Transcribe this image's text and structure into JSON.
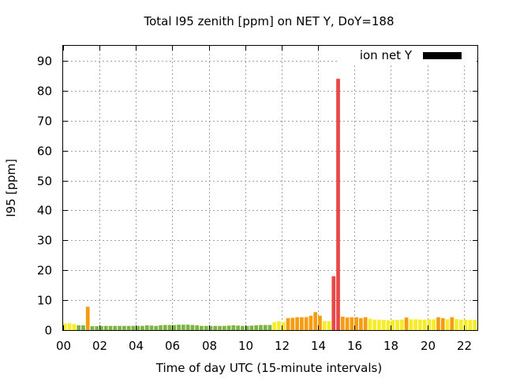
{
  "chart_data": {
    "type": "bar",
    "title": "Total I95 zenith [ppm] on NET Y, DoY=188",
    "xlabel": "Time of day UTC (15-minute intervals)",
    "ylabel": "I95 [ppm]",
    "xlim": [
      0,
      22.75
    ],
    "ylim": [
      0,
      95
    ],
    "x_ticks": [
      "00",
      "02",
      "04",
      "06",
      "08",
      "10",
      "12",
      "14",
      "16",
      "18",
      "20",
      "22"
    ],
    "y_ticks": [
      "0",
      "10",
      "20",
      "30",
      "40",
      "50",
      "60",
      "70",
      "80",
      "90"
    ],
    "grid": true,
    "legend": {
      "position": "top-right",
      "entries": [
        {
          "label": "ion net Y",
          "color": "#000000"
        }
      ]
    },
    "interval_hours": 0.25,
    "x_start": 0,
    "values": [
      2.2,
      2.3,
      2.0,
      1.6,
      1.6,
      7.8,
      1.3,
      1.3,
      1.4,
      1.4,
      1.4,
      1.4,
      1.4,
      1.4,
      1.4,
      1.4,
      1.4,
      1.4,
      1.6,
      1.5,
      1.4,
      1.6,
      1.7,
      1.7,
      1.7,
      1.8,
      1.8,
      1.8,
      1.7,
      1.6,
      1.4,
      1.4,
      1.4,
      1.4,
      1.4,
      1.4,
      1.5,
      1.6,
      1.5,
      1.4,
      1.4,
      1.5,
      1.6,
      1.7,
      1.7,
      1.7,
      2.6,
      3.0,
      2.6,
      4.0,
      4.1,
      4.3,
      4.3,
      4.3,
      4.8,
      6.0,
      4.8,
      3.0,
      3.0,
      18.0,
      84.0,
      4.5,
      4.2,
      4.3,
      4.3,
      4.0,
      4.3,
      3.8,
      3.5,
      3.5,
      3.4,
      3.3,
      3.4,
      3.4,
      3.5,
      4.2,
      3.6,
      3.6,
      3.5,
      3.5,
      3.6,
      3.6,
      4.3,
      4.0,
      3.6,
      4.3,
      3.7,
      3.5,
      3.5,
      3.4,
      3.4,
      3.4,
      3.2,
      3.2,
      4.8
    ],
    "colors": {
      "low": "#7cb342",
      "mid_low": "#f7ec2a",
      "mid": "#f59d12",
      "high": "#e84848"
    },
    "color_thresholds": [
      2.0,
      4.0,
      10.0
    ]
  }
}
